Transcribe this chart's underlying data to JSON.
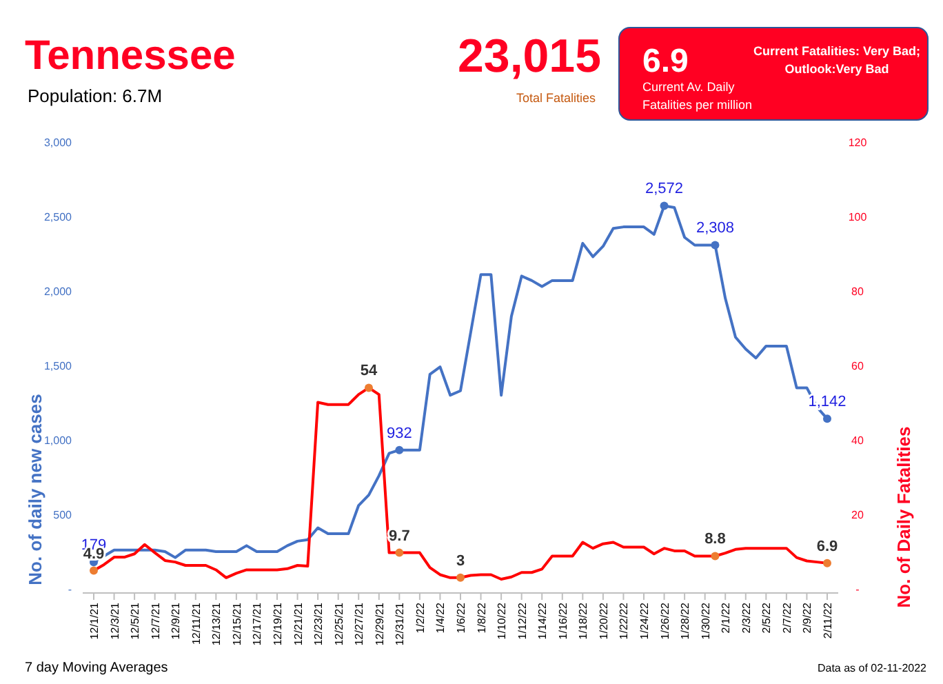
{
  "chart_data": {
    "type": "line",
    "title": "Tennessee",
    "subtitle": "Population: 6.7M",
    "annotations": [
      "23,015",
      "Total Fatalities",
      "6.9",
      "Current Av. Daily Fatalities per million",
      "Current Fatalities: Very Bad; Outlook:Very Bad",
      "7 day Moving Averages",
      "Data as of 02-11-2022"
    ],
    "categories": [
      "12/1/21",
      null,
      "12/3/21",
      null,
      "12/5/21",
      null,
      "12/7/21",
      null,
      "12/9/21",
      null,
      "12/11/21",
      null,
      "12/13/21",
      null,
      "12/15/21",
      null,
      "12/17/21",
      null,
      "12/19/21",
      null,
      "12/21/21",
      null,
      "12/23/21",
      null,
      "12/25/21",
      null,
      "12/27/21",
      null,
      "12/29/21",
      null,
      "12/31/21",
      null,
      "1/2/22",
      null,
      "1/4/22",
      null,
      "1/6/22",
      null,
      "1/8/22",
      null,
      "1/10/22",
      null,
      "1/12/22",
      null,
      "1/14/22",
      null,
      "1/16/22",
      null,
      "1/18/22",
      null,
      "1/20/22",
      null,
      "1/22/22",
      null,
      "1/24/22",
      null,
      "1/26/22",
      null,
      "1/28/22",
      null,
      "1/30/22",
      null,
      "2/1/22",
      null,
      "2/3/22",
      null,
      "2/5/22",
      null,
      "2/7/22",
      null,
      "2/9/22",
      null,
      "2/11/22"
    ],
    "series": [
      {
        "color": "#4472c4",
        "values": [
          179,
          220,
          260,
          260,
          260,
          260,
          260,
          250,
          210,
          260,
          260,
          260,
          250,
          250,
          250,
          290,
          250,
          250,
          250,
          290,
          320,
          330,
          410,
          370,
          370,
          370,
          560,
          630,
          760,
          910,
          932,
          932,
          932,
          1440,
          1490,
          1300,
          1330,
          1720,
          2110,
          2110,
          1300,
          1830,
          2100,
          2070,
          2030,
          2070,
          2070,
          2070,
          2320,
          2230,
          2300,
          2420,
          2430,
          2430,
          2430,
          2380,
          2572,
          2560,
          2360,
          2308,
          2308,
          2308,
          1950,
          1690,
          1610,
          1550,
          1630,
          1630,
          1630,
          1350,
          1350,
          1220,
          1142
        ],
        "value_labels": [
          "179",
          null,
          null,
          null,
          null,
          null,
          null,
          null,
          null,
          null,
          null,
          null,
          null,
          null,
          null,
          null,
          null,
          null,
          null,
          null,
          null,
          null,
          null,
          null,
          null,
          null,
          null,
          null,
          null,
          null,
          "932",
          null,
          null,
          null,
          null,
          null,
          null,
          null,
          null,
          null,
          null,
          null,
          null,
          null,
          null,
          null,
          null,
          null,
          null,
          null,
          null,
          null,
          null,
          null,
          null,
          null,
          "2,572",
          null,
          null,
          null,
          null,
          "2,308",
          null,
          null,
          null,
          null,
          null,
          null,
          null,
          null,
          null,
          null,
          "1,142"
        ]
      },
      {
        "color": "#ff0000",
        "axis": "y2",
        "values": [
          4.9,
          6.5,
          8.5,
          8.5,
          9.4,
          11.9,
          9.7,
          7.6,
          7.2,
          6.3,
          6.3,
          6.3,
          5.1,
          3,
          4.2,
          5.1,
          5.1,
          5.1,
          5.1,
          5.4,
          6.3,
          6.1,
          50.1,
          49.5,
          49.5,
          49.5,
          52.2,
          54,
          52.2,
          9.7,
          9.7,
          9.7,
          9.7,
          5.7,
          3.8,
          3,
          3,
          3.6,
          3.8,
          3.8,
          2.6,
          3.2,
          4.4,
          4.4,
          5.3,
          8.8,
          8.8,
          8.8,
          12.5,
          10.9,
          12.1,
          12.5,
          11.2,
          11.2,
          11.2,
          9.4,
          10.9,
          10.2,
          10.2,
          8.8,
          8.8,
          8.8,
          9.6,
          10.6,
          10.9,
          10.9,
          10.9,
          10.9,
          10.9,
          8.4,
          7.5,
          7.2,
          6.9
        ],
        "value_labels": [
          "4.9",
          null,
          null,
          null,
          null,
          null,
          null,
          null,
          null,
          null,
          null,
          null,
          null,
          null,
          null,
          null,
          null,
          null,
          null,
          null,
          null,
          null,
          null,
          null,
          null,
          null,
          null,
          "54",
          null,
          null,
          "9.7",
          null,
          null,
          null,
          null,
          null,
          "3",
          null,
          null,
          null,
          null,
          null,
          null,
          null,
          null,
          null,
          null,
          null,
          null,
          null,
          null,
          null,
          null,
          null,
          null,
          null,
          null,
          null,
          null,
          null,
          null,
          "8.8",
          null,
          null,
          null,
          null,
          null,
          null,
          null,
          null,
          null,
          null,
          "6.9"
        ]
      }
    ],
    "ylabel": "No. of daily new  cases",
    "y2label": "No. of Daily Fatalities",
    "ylim": [
      0,
      3000
    ],
    "yticks": [
      {
        "value": 0,
        "label": "-"
      },
      500,
      {
        "value": 1000,
        "label": "1,000"
      },
      {
        "value": 1500,
        "label": "1,500"
      },
      {
        "value": 2000,
        "label": "2,000"
      },
      {
        "value": 2500,
        "label": "2,500"
      },
      {
        "value": 3000,
        "label": "3,000"
      }
    ],
    "y2lim": [
      0,
      120
    ],
    "y2ticks": [
      {
        "value": 0,
        "label": "-"
      },
      20,
      40,
      60,
      80,
      100,
      120
    ],
    "grid": false
  }
}
